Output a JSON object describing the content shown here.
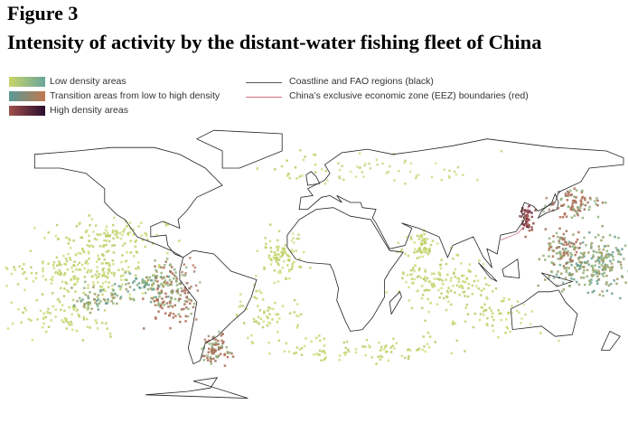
{
  "header": {
    "figure": "Figure 3",
    "title": "Intensity of activity by the distant-water fishing fleet of China"
  },
  "legend": {
    "density": [
      "Low density areas",
      "Transition areas from low to high density",
      "High density areas"
    ],
    "lines": [
      "Coastline and FAO regions (black)",
      "China’s exclusive economic zone (EEZ) boundaries (red)"
    ]
  }
}
